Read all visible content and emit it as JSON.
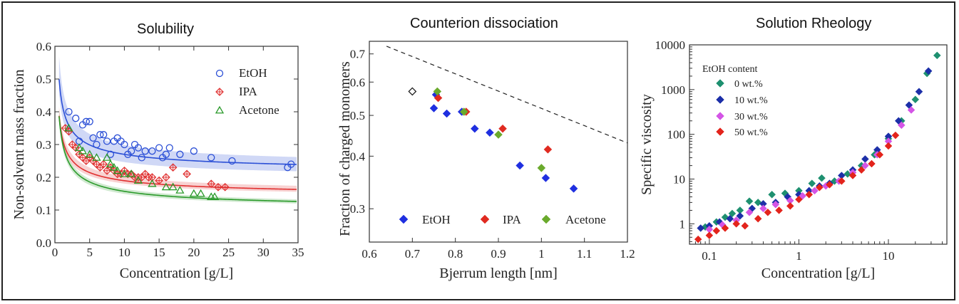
{
  "colors": {
    "blue": "#2b4fd6",
    "red": "#e03030",
    "green": "#2a9a2a",
    "teal": "#1e9070",
    "navy": "#1c2fa8",
    "violet": "#d455e6",
    "lime": "#78b030"
  },
  "chart_data": [
    {
      "id": "solubility",
      "type": "scatter",
      "panel_title": "Solubility",
      "xlabel": "Concentration [g/L]",
      "ylabel": "Non-solvent mass fraction",
      "xlim": [
        0,
        35
      ],
      "ylim": [
        0,
        0.6
      ],
      "xticks": [
        0,
        5,
        10,
        15,
        20,
        25,
        30,
        35
      ],
      "yticks": [
        0.0,
        0.1,
        0.2,
        0.3,
        0.4,
        0.5,
        0.6
      ],
      "legend": [
        "EtOH",
        "IPA",
        "Acetone"
      ],
      "series": [
        {
          "name": "EtOH",
          "marker": "circle",
          "color": "#2b4fd6",
          "fit": {
            "a": 0.208,
            "b": 0.22,
            "p": 0.55
          },
          "band": {
            "lower": {
              "a": 0.19,
              "b": 0.2,
              "p": 0.55
            },
            "upper": {
              "a": 0.225,
              "b": 0.26,
              "p": 0.55
            }
          },
          "x": [
            2,
            3,
            3.5,
            4,
            4.5,
            5,
            5.5,
            6,
            6.5,
            7,
            7.5,
            8,
            8.5,
            9,
            9.5,
            10,
            10.5,
            11,
            11.5,
            12,
            12.5,
            13,
            14,
            15,
            15.5,
            16,
            16.5,
            18,
            20,
            22.5,
            25.5,
            33.5,
            34
          ],
          "y": [
            0.4,
            0.38,
            0.31,
            0.36,
            0.37,
            0.37,
            0.32,
            0.3,
            0.33,
            0.33,
            0.31,
            0.27,
            0.31,
            0.32,
            0.31,
            0.3,
            0.27,
            0.28,
            0.3,
            0.29,
            0.26,
            0.28,
            0.28,
            0.29,
            0.26,
            0.27,
            0.29,
            0.27,
            0.28,
            0.26,
            0.25,
            0.23,
            0.24
          ]
        },
        {
          "name": "IPA",
          "marker": "diamond-cross",
          "color": "#e03030",
          "fit": {
            "a": 0.136,
            "b": 0.19,
            "p": 0.55
          },
          "band": {
            "lower": {
              "a": 0.13,
              "b": 0.18,
              "p": 0.55
            },
            "upper": {
              "a": 0.145,
              "b": 0.205,
              "p": 0.55
            }
          },
          "x": [
            1.5,
            2,
            2.5,
            3,
            3.5,
            4,
            4.5,
            5,
            5.5,
            6,
            6.5,
            7,
            7.5,
            8,
            8.5,
            9,
            9.5,
            10,
            10.5,
            11,
            11.5,
            12,
            12.5,
            13,
            13.5,
            14,
            15,
            16,
            17,
            19,
            22.5,
            23.5,
            24.5
          ],
          "y": [
            0.35,
            0.34,
            0.3,
            0.29,
            0.27,
            0.26,
            0.25,
            0.26,
            0.25,
            0.24,
            0.23,
            0.24,
            0.22,
            0.23,
            0.22,
            0.21,
            0.21,
            0.22,
            0.21,
            0.21,
            0.2,
            0.2,
            0.2,
            0.21,
            0.2,
            0.2,
            0.19,
            0.2,
            0.23,
            0.21,
            0.18,
            0.17,
            0.17
          ]
        },
        {
          "name": "Acetone",
          "marker": "triangle",
          "color": "#2a9a2a",
          "fit": {
            "a": 0.095,
            "b": 0.22,
            "p": 0.55
          },
          "band": {
            "lower": {
              "a": 0.09,
              "b": 0.21,
              "p": 0.55
            },
            "upper": {
              "a": 0.1,
              "b": 0.23,
              "p": 0.55
            }
          },
          "x": [
            2,
            3.5,
            4,
            5,
            6,
            7.5,
            8,
            8.5,
            9,
            10,
            11,
            12,
            14,
            16,
            17,
            18,
            20,
            21,
            22.5,
            23
          ],
          "y": [
            0.35,
            0.29,
            0.28,
            0.27,
            0.26,
            0.26,
            0.24,
            0.23,
            0.22,
            0.21,
            0.21,
            0.19,
            0.18,
            0.17,
            0.17,
            0.16,
            0.15,
            0.15,
            0.14,
            0.14
          ]
        }
      ]
    },
    {
      "id": "counterion",
      "type": "scatter",
      "panel_title": "Counterion dissociation",
      "xlabel": "Bjerrum length [nm]",
      "ylabel": "Fraction of charged monomers",
      "xscale": "linear",
      "yscale": "log",
      "xlim": [
        0.6,
        1.2
      ],
      "ylim": [
        0.25,
        0.75
      ],
      "xticks": [
        0.6,
        0.7,
        0.8,
        0.9,
        1.0,
        1.1,
        1.2
      ],
      "xtick_labels": [
        "0.6",
        "0.7",
        "0.8",
        "0.9",
        "1",
        "1.1",
        "1.2"
      ],
      "yticks": [
        0.3,
        0.4,
        0.5,
        0.6,
        0.7
      ],
      "legend": [
        "EtOH",
        "IPA",
        "Acetone"
      ],
      "reference_line": {
        "x": [
          0.64,
          1.2
        ],
        "y": [
          0.73,
          0.43
        ],
        "style": "dashed"
      },
      "open_point": {
        "x": 0.7,
        "y": 0.57
      },
      "series": [
        {
          "name": "EtOH",
          "color": "#1f2fe0",
          "x": [
            0.75,
            0.755,
            0.78,
            0.815,
            0.845,
            0.88,
            0.95,
            1.01,
            1.075
          ],
          "y": [
            0.52,
            0.56,
            0.505,
            0.51,
            0.465,
            0.455,
            0.38,
            0.355,
            0.335
          ]
        },
        {
          "name": "IPA",
          "color": "#e02a20",
          "x": [
            0.76,
            0.825,
            0.91,
            1.015
          ],
          "y": [
            0.55,
            0.51,
            0.465,
            0.415
          ]
        },
        {
          "name": "Acetone",
          "color": "#6aaa2c",
          "x": [
            0.758,
            0.82,
            0.9,
            1.0
          ],
          "y": [
            0.57,
            0.51,
            0.45,
            0.375
          ]
        }
      ]
    },
    {
      "id": "rheology",
      "type": "scatter",
      "panel_title": "Solution Rheology",
      "xlabel": "Concentration [g/L]",
      "ylabel": "Specific viscosity",
      "xscale": "log",
      "yscale": "log",
      "xlim": [
        0.06,
        45
      ],
      "ylim": [
        0.35,
        10000
      ],
      "xticks": [
        0.1,
        1,
        10
      ],
      "xtick_labels": [
        "0.1",
        "1",
        "10"
      ],
      "yticks": [
        1,
        10,
        100,
        1000,
        10000
      ],
      "ytick_labels": [
        "1",
        "10",
        "100",
        "1000",
        "10000"
      ],
      "legend_title": "EtOH content",
      "legend": [
        "0 wt.%",
        "10 wt.%",
        "30 wt.%",
        "50 wt.%"
      ],
      "series": [
        {
          "name": "0 wt.%",
          "color": "#1e9070",
          "x": [
            0.09,
            0.12,
            0.15,
            0.18,
            0.22,
            0.28,
            0.35,
            0.5,
            0.7,
            1.0,
            1.4,
            1.8,
            2.5,
            3.5,
            5,
            7,
            10,
            14,
            20,
            27,
            35
          ],
          "y": [
            0.85,
            1.1,
            1.4,
            1.7,
            2.0,
            3.2,
            3.0,
            4.5,
            4.8,
            5.5,
            8.0,
            10.5,
            9.0,
            13,
            20,
            35,
            80,
            200,
            600,
            2300,
            5800
          ]
        },
        {
          "name": "10 wt.%",
          "color": "#1c2fa8",
          "x": [
            0.08,
            0.1,
            0.13,
            0.17,
            0.22,
            0.3,
            0.4,
            0.55,
            0.75,
            1.0,
            1.3,
            1.7,
            2.2,
            3.0,
            4.0,
            5.5,
            7.5,
            10,
            13,
            17,
            22,
            28
          ],
          "y": [
            0.8,
            0.9,
            1.1,
            1.3,
            1.5,
            2.2,
            2.8,
            3.0,
            4.0,
            4.5,
            5.5,
            7.0,
            8.0,
            12,
            16,
            28,
            45,
            90,
            200,
            450,
            900,
            2600
          ]
        },
        {
          "name": "30 wt.%",
          "color": "#d455e6",
          "x": [
            0.1,
            0.14,
            0.2,
            0.28,
            0.4,
            0.55,
            0.8,
            1.1,
            1.5,
            2.0,
            2.8,
            4.0,
            5.5,
            7.5,
            10,
            14,
            18
          ],
          "y": [
            0.75,
            0.95,
            1.2,
            1.8,
            2.2,
            2.7,
            3.3,
            4.2,
            5.5,
            7.0,
            9.0,
            14,
            20,
            35,
            70,
            160,
            350
          ]
        },
        {
          "name": "50 wt.%",
          "color": "#e3241c",
          "x": [
            0.075,
            0.1,
            0.12,
            0.15,
            0.2,
            0.25,
            0.35,
            0.45,
            0.6,
            0.8,
            1.0,
            1.3,
            1.7,
            2.2,
            3.0,
            4.0,
            5.0,
            6.5,
            8.0,
            10,
            12
          ],
          "y": [
            0.45,
            0.55,
            0.7,
            0.8,
            1.0,
            0.9,
            1.3,
            1.8,
            2.0,
            2.5,
            3.5,
            4.5,
            6.5,
            7.5,
            9.0,
            12,
            16,
            22,
            35,
            55,
            95
          ]
        }
      ]
    }
  ]
}
